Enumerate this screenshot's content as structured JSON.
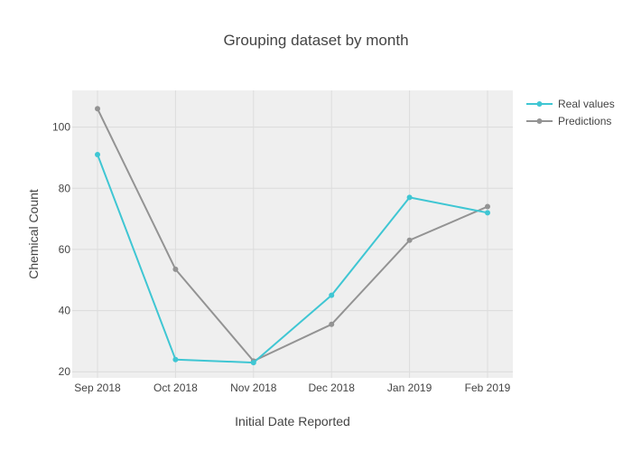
{
  "chart_data": {
    "type": "line",
    "title": "Grouping dataset by month",
    "xlabel": "Initial Date Reported",
    "ylabel": "Chemical Count",
    "categories": [
      "Sep 2018",
      "Oct 2018",
      "Nov 2018",
      "Dec 2018",
      "Jan 2019",
      "Feb 2019"
    ],
    "ylim": [
      18,
      112
    ],
    "yticks": [
      20,
      40,
      60,
      80,
      100
    ],
    "grid": true,
    "legend_position": "top-right",
    "series": [
      {
        "name": "Real values",
        "color": "#3fc6d3",
        "values": [
          91,
          24,
          23,
          45,
          77,
          72
        ]
      },
      {
        "name": "Predictions",
        "color": "#939393",
        "values": [
          106,
          53.5,
          23.5,
          35.5,
          63,
          74
        ]
      }
    ]
  }
}
